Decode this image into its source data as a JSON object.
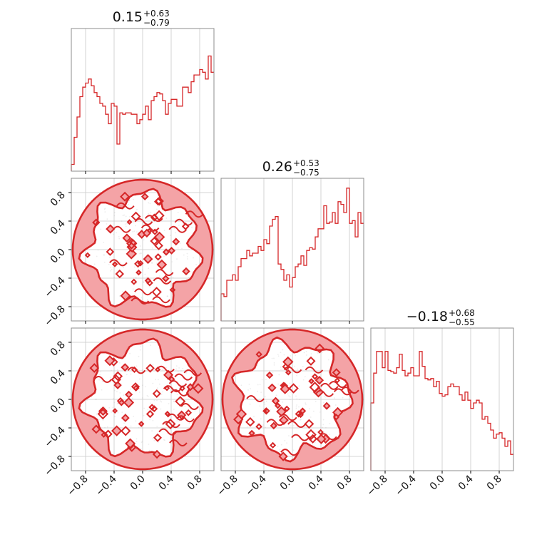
{
  "colors": {
    "accent": "#d62728",
    "fill": "#f4a3a6",
    "grid": "#c8c8c8",
    "frame": "#8c8c8c"
  },
  "chart_data": {
    "type": "corner",
    "parameters": 3,
    "axis_range": [
      -1,
      1
    ],
    "grid": true,
    "tick_values": [
      -0.8,
      -0.4,
      0.0,
      0.4,
      0.8
    ],
    "tick_labels": [
      "−0.8",
      "−0.4",
      "0.0",
      "0.4",
      "0.8"
    ],
    "marginals": [
      {
        "title_value": "0.15",
        "title_plus": "+0.63",
        "title_minus": "−0.79",
        "bins": 50,
        "counts": [
          0.05,
          0.25,
          0.4,
          0.55,
          0.62,
          0.65,
          0.68,
          0.63,
          0.58,
          0.55,
          0.5,
          0.48,
          0.42,
          0.35,
          0.5,
          0.48,
          0.2,
          0.43,
          0.42,
          0.43,
          0.43,
          0.42,
          0.42,
          0.35,
          0.38,
          0.42,
          0.48,
          0.38,
          0.52,
          0.55,
          0.58,
          0.57,
          0.52,
          0.42,
          0.5,
          0.53,
          0.53,
          0.48,
          0.48,
          0.62,
          0.62,
          0.58,
          0.66,
          0.71,
          0.71,
          0.75,
          0.73,
          0.68,
          0.85,
          0.73
        ]
      },
      {
        "title_value": "0.26",
        "title_plus": "+0.53",
        "title_minus": "−0.75",
        "bins": 50,
        "counts": [
          0.2,
          0.18,
          0.3,
          0.3,
          0.34,
          0.3,
          0.4,
          0.46,
          0.46,
          0.52,
          0.48,
          0.5,
          0.5,
          0.55,
          0.52,
          0.6,
          0.57,
          0.7,
          0.75,
          0.77,
          0.42,
          0.38,
          0.3,
          0.34,
          0.25,
          0.32,
          0.4,
          0.42,
          0.48,
          0.41,
          0.52,
          0.54,
          0.53,
          0.62,
          0.68,
          0.68,
          0.85,
          0.72,
          0.73,
          0.8,
          0.72,
          0.88,
          0.86,
          0.8,
          0.98,
          0.72,
          0.74,
          0.62,
          0.8,
          0.72
        ]
      },
      {
        "title_value": "−0.18",
        "title_plus": "+0.68",
        "title_minus": "−0.55",
        "bins": 50,
        "counts": [
          0.5,
          0.72,
          0.88,
          0.88,
          0.76,
          0.88,
          0.74,
          0.73,
          0.72,
          0.76,
          0.86,
          0.74,
          0.7,
          0.72,
          0.76,
          0.7,
          0.7,
          0.88,
          0.77,
          0.68,
          0.67,
          0.68,
          0.62,
          0.66,
          0.57,
          0.55,
          0.56,
          0.62,
          0.64,
          0.62,
          0.62,
          0.56,
          0.52,
          0.58,
          0.52,
          0.46,
          0.5,
          0.52,
          0.5,
          0.38,
          0.4,
          0.35,
          0.3,
          0.24,
          0.27,
          0.28,
          0.24,
          0.18,
          0.22,
          0.12
        ]
      }
    ],
    "joint": [
      {
        "x_param": 1,
        "y_param": 2
      },
      {
        "x_param": 1,
        "y_param": 3
      },
      {
        "x_param": 2,
        "y_param": 3
      }
    ]
  }
}
